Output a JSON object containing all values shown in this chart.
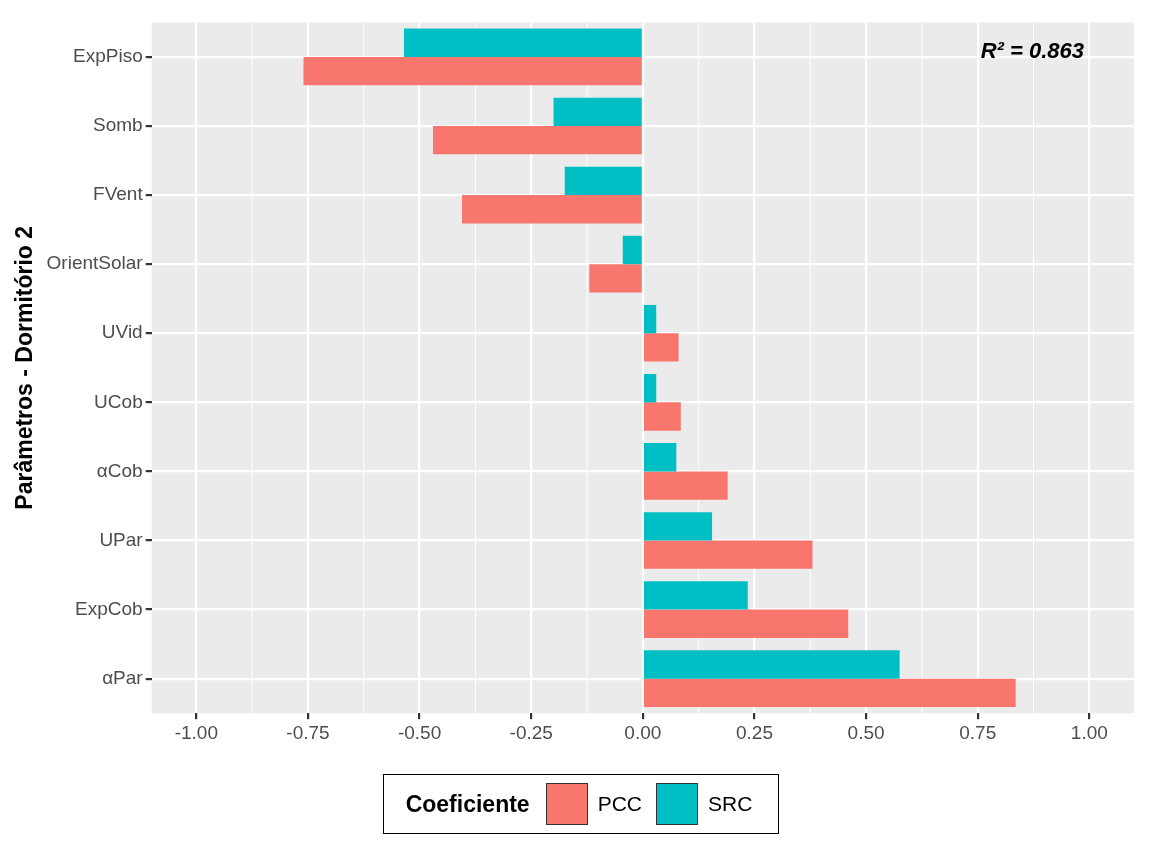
{
  "chart_data": {
    "type": "bar",
    "orientation": "horizontal",
    "ylabel": "Parâmetros - Dormitório 2",
    "legend_title": "Coeficiente",
    "legend": "bottom",
    "grid": true,
    "categories": [
      "ExpPiso",
      "Somb",
      "FVent",
      "OrientSolar",
      "UVid",
      "UCob",
      "αCob",
      "UPar",
      "ExpCob",
      "αPar"
    ],
    "series": [
      {
        "name": "PCC",
        "color": "#f8766d",
        "values": [
          -0.76,
          -0.47,
          -0.405,
          -0.12,
          0.08,
          0.085,
          0.19,
          0.38,
          0.46,
          0.835
        ]
      },
      {
        "name": "SRC",
        "color": "#00bfc4",
        "values": [
          -0.535,
          -0.2,
          -0.175,
          -0.045,
          0.03,
          0.03,
          0.075,
          0.155,
          0.235,
          0.575
        ]
      }
    ],
    "xlim": [
      -1.1,
      1.1
    ],
    "xticks": [
      {
        "value": -1,
        "label": "-1.00"
      },
      {
        "value": -0.75,
        "label": "-0.75"
      },
      {
        "value": -0.5,
        "label": "-0.50"
      },
      {
        "value": -0.25,
        "label": "-0.25"
      },
      {
        "value": 0,
        "label": "0.00"
      },
      {
        "value": 0.25,
        "label": "0.25"
      },
      {
        "value": 0.5,
        "label": "0.50"
      },
      {
        "value": 0.75,
        "label": "0.75"
      },
      {
        "value": 1,
        "label": "1.00"
      }
    ],
    "annotations": [
      "R² = 0.863"
    ]
  }
}
